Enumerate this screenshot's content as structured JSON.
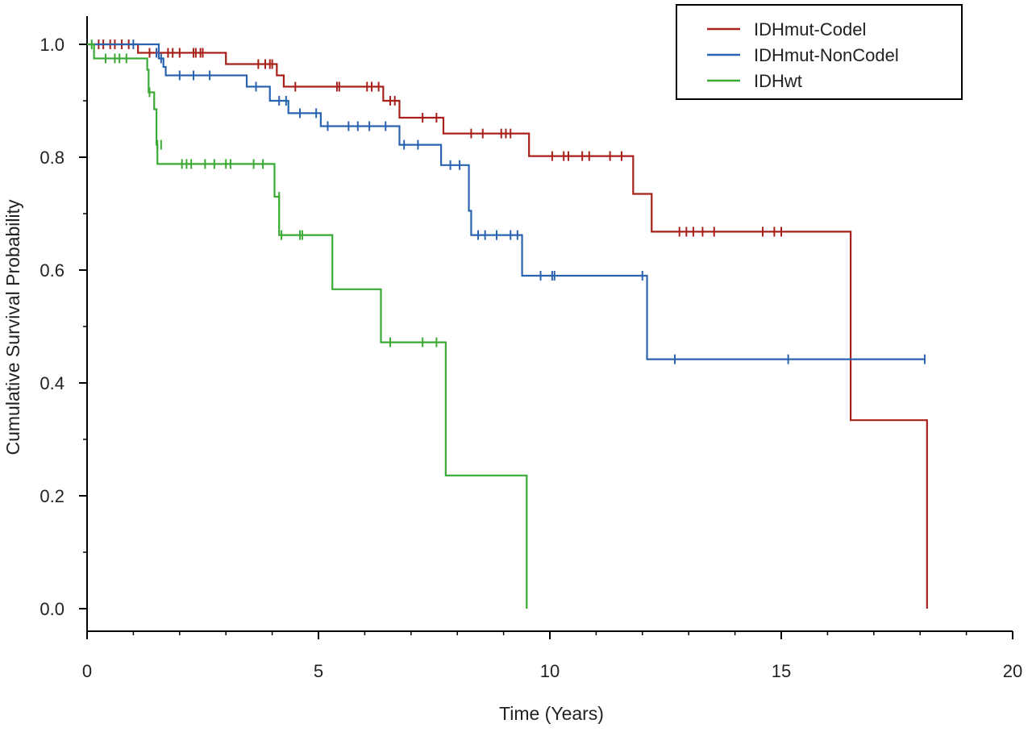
{
  "chart_data": {
    "type": "line",
    "subtype": "kaplan-meier-step",
    "title": "",
    "xlabel": "Time (Years)",
    "ylabel": "Cumulative Survival Probability",
    "xlim": [
      0,
      20
    ],
    "ylim": [
      0,
      1.05
    ],
    "xticks": [
      0,
      5,
      10,
      15,
      20
    ],
    "yticks": [
      0.0,
      0.2,
      0.4,
      0.6,
      0.8,
      1.0
    ],
    "xtick_labels": [
      "0",
      "5",
      "10",
      "15",
      "20"
    ],
    "ytick_labels": [
      "0.0",
      "0.2",
      "0.4",
      "0.6",
      "0.8",
      "1.0"
    ],
    "grid": false,
    "legend_position": "top-right",
    "series": [
      {
        "name": "IDHmut-Codel",
        "color": "#a8201a",
        "steps": [
          [
            0,
            1.0
          ],
          [
            1.1,
            0.985
          ],
          [
            3.0,
            0.965
          ],
          [
            4.1,
            0.945
          ],
          [
            4.25,
            0.925
          ],
          [
            6.4,
            0.9
          ],
          [
            6.75,
            0.87
          ],
          [
            7.7,
            0.842
          ],
          [
            9.55,
            0.802
          ],
          [
            11.8,
            0.735
          ],
          [
            12.2,
            0.668
          ],
          [
            16.5,
            0.334
          ],
          [
            18.15,
            0.0
          ]
        ],
        "end_x": 18.15,
        "censored": [
          [
            0.25,
            1.0
          ],
          [
            0.35,
            1.0
          ],
          [
            0.5,
            1.0
          ],
          [
            0.6,
            1.0
          ],
          [
            0.75,
            1.0
          ],
          [
            0.9,
            1.0
          ],
          [
            1.35,
            0.985
          ],
          [
            1.5,
            0.985
          ],
          [
            1.75,
            0.985
          ],
          [
            1.85,
            0.985
          ],
          [
            2.0,
            0.985
          ],
          [
            2.3,
            0.985
          ],
          [
            2.35,
            0.985
          ],
          [
            2.45,
            0.985
          ],
          [
            2.5,
            0.985
          ],
          [
            3.7,
            0.965
          ],
          [
            3.85,
            0.965
          ],
          [
            3.95,
            0.965
          ],
          [
            4.0,
            0.965
          ],
          [
            4.5,
            0.925
          ],
          [
            5.4,
            0.925
          ],
          [
            5.45,
            0.925
          ],
          [
            6.05,
            0.925
          ],
          [
            6.15,
            0.925
          ],
          [
            6.3,
            0.925
          ],
          [
            6.55,
            0.9
          ],
          [
            6.65,
            0.9
          ],
          [
            7.25,
            0.87
          ],
          [
            7.55,
            0.87
          ],
          [
            8.3,
            0.842
          ],
          [
            8.55,
            0.842
          ],
          [
            8.95,
            0.842
          ],
          [
            9.05,
            0.842
          ],
          [
            9.15,
            0.842
          ],
          [
            10.05,
            0.802
          ],
          [
            10.3,
            0.802
          ],
          [
            10.4,
            0.802
          ],
          [
            10.7,
            0.802
          ],
          [
            10.85,
            0.802
          ],
          [
            11.3,
            0.802
          ],
          [
            11.55,
            0.802
          ],
          [
            12.8,
            0.668
          ],
          [
            12.95,
            0.668
          ],
          [
            13.1,
            0.668
          ],
          [
            13.3,
            0.668
          ],
          [
            13.55,
            0.668
          ],
          [
            14.6,
            0.668
          ],
          [
            14.85,
            0.668
          ],
          [
            15.0,
            0.668
          ]
        ]
      },
      {
        "name": "IDHmut-NonCodel",
        "color": "#2a63b0",
        "steps": [
          [
            0,
            1.0
          ],
          [
            1.55,
            0.975
          ],
          [
            1.65,
            0.96
          ],
          [
            1.7,
            0.945
          ],
          [
            3.45,
            0.925
          ],
          [
            3.95,
            0.9
          ],
          [
            4.35,
            0.878
          ],
          [
            5.05,
            0.855
          ],
          [
            6.75,
            0.822
          ],
          [
            7.65,
            0.786
          ],
          [
            8.25,
            0.705
          ],
          [
            8.3,
            0.662
          ],
          [
            9.4,
            0.59
          ],
          [
            12.1,
            0.442
          ]
        ],
        "end_x": 18.1,
        "censored": [
          [
            1.0,
            1.0
          ],
          [
            1.5,
            0.985
          ],
          [
            1.6,
            0.975
          ],
          [
            2.0,
            0.945
          ],
          [
            2.3,
            0.945
          ],
          [
            2.65,
            0.945
          ],
          [
            3.65,
            0.925
          ],
          [
            4.15,
            0.9
          ],
          [
            4.3,
            0.9
          ],
          [
            4.6,
            0.878
          ],
          [
            4.95,
            0.878
          ],
          [
            5.2,
            0.855
          ],
          [
            5.65,
            0.855
          ],
          [
            5.85,
            0.855
          ],
          [
            6.1,
            0.855
          ],
          [
            6.45,
            0.855
          ],
          [
            6.85,
            0.822
          ],
          [
            7.15,
            0.822
          ],
          [
            7.85,
            0.786
          ],
          [
            8.05,
            0.786
          ],
          [
            8.45,
            0.662
          ],
          [
            8.6,
            0.662
          ],
          [
            8.85,
            0.662
          ],
          [
            9.15,
            0.662
          ],
          [
            9.3,
            0.662
          ],
          [
            9.8,
            0.59
          ],
          [
            10.05,
            0.59
          ],
          [
            10.1,
            0.59
          ],
          [
            12.0,
            0.59
          ],
          [
            12.7,
            0.442
          ],
          [
            15.15,
            0.442
          ],
          [
            18.1,
            0.442
          ]
        ]
      },
      {
        "name": "IDHwt",
        "color": "#3aaa35",
        "steps": [
          [
            0,
            1.0
          ],
          [
            0.15,
            0.975
          ],
          [
            1.3,
            0.955
          ],
          [
            1.33,
            0.915
          ],
          [
            1.45,
            0.885
          ],
          [
            1.5,
            0.822
          ],
          [
            1.52,
            0.788
          ],
          [
            4.05,
            0.73
          ],
          [
            4.15,
            0.662
          ],
          [
            5.3,
            0.566
          ],
          [
            6.35,
            0.472
          ],
          [
            7.75,
            0.236
          ],
          [
            9.5,
            0.0
          ]
        ],
        "end_x": 9.5,
        "censored": [
          [
            0.1,
            1.0
          ],
          [
            0.4,
            0.975
          ],
          [
            0.6,
            0.975
          ],
          [
            0.7,
            0.975
          ],
          [
            0.85,
            0.975
          ],
          [
            1.35,
            0.915
          ],
          [
            1.52,
            0.822
          ],
          [
            1.6,
            0.822
          ],
          [
            2.05,
            0.788
          ],
          [
            2.15,
            0.788
          ],
          [
            2.25,
            0.788
          ],
          [
            2.55,
            0.788
          ],
          [
            2.75,
            0.788
          ],
          [
            3.0,
            0.788
          ],
          [
            3.1,
            0.788
          ],
          [
            3.6,
            0.788
          ],
          [
            3.8,
            0.788
          ],
          [
            4.15,
            0.73
          ],
          [
            4.2,
            0.662
          ],
          [
            4.6,
            0.662
          ],
          [
            4.65,
            0.662
          ],
          [
            6.55,
            0.472
          ],
          [
            7.25,
            0.472
          ],
          [
            7.55,
            0.472
          ]
        ]
      }
    ]
  }
}
